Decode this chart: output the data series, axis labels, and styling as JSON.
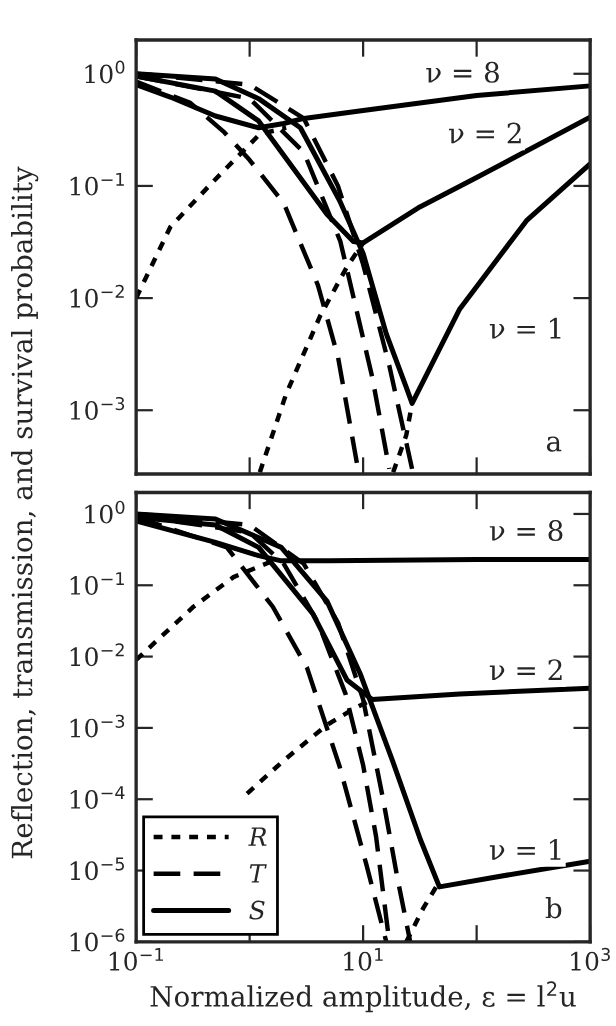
{
  "chart_data": [
    {
      "type": "line",
      "ylabel": "Reflection, transmission, and survival probability",
      "log": "xy",
      "grid": false,
      "legend": false,
      "tick_labels": "y",
      "xlim": [
        0.1,
        1000
      ],
      "xticks": [
        0.1,
        1,
        10,
        100,
        1000
      ],
      "ylim": [
        0.00027,
        2
      ],
      "yticks": [
        {
          "value": 0.001,
          "label": "10$^{−3}$"
        },
        {
          "value": 0.01,
          "label": "10$^{−2}$"
        },
        {
          "value": 0.1,
          "label": "10$^{−1}$"
        },
        {
          "value": 1,
          "label": "10$^{0}$"
        }
      ],
      "series": [
        {
          "color": "#000000",
          "line_style": "solid",
          "x": [
            0.1,
            0.2,
            0.5,
            1.2,
            2,
            3,
            10,
            100,
            1000
          ],
          "values": [
            0.8,
            0.62,
            0.42,
            0.33,
            0.36,
            0.4,
            0.47,
            0.64,
            0.78
          ]
        },
        {
          "color": "#000000",
          "line_style": "solid",
          "x": [
            0.1,
            0.5,
            1.2,
            4.8,
            8.2,
            10,
            31.6,
            102,
            1000
          ],
          "values": [
            0.95,
            0.7,
            0.38,
            0.056,
            0.032,
            0.031,
            0.065,
            0.12,
            0.41
          ]
        },
        {
          "color": "#000000",
          "line_style": "solid",
          "x": [
            0.1,
            0.5,
            1.2,
            2.8,
            6.2,
            10,
            16,
            24,
            27,
            71,
            275,
            1000
          ],
          "values": [
            1.0,
            0.9,
            0.6,
            0.33,
            0.074,
            0.025,
            0.0048,
            0.0016,
            0.00115,
            0.008,
            0.049,
            0.157
          ]
        },
        {
          "color": "#000000",
          "line_style": "dashed",
          "x": [
            0.1,
            0.3,
            0.6,
            1,
            2,
            4,
            6,
            9
          ],
          "values": [
            0.85,
            0.55,
            0.3,
            0.17,
            0.07,
            0.013,
            0.003,
            0.0003
          ]
        },
        {
          "color": "#000000",
          "line_style": "dashed",
          "x": [
            0.1,
            1,
            3,
            6.3,
            12,
            17
          ],
          "values": [
            0.95,
            0.6,
            0.2,
            0.032,
            0.002,
            0.0003
          ]
        },
        {
          "color": "#000000",
          "line_style": "dashed",
          "x": [
            0.1,
            1,
            3,
            6,
            10,
            17,
            27
          ],
          "values": [
            1.0,
            0.8,
            0.4,
            0.1,
            0.02,
            0.0025,
            0.0003
          ]
        },
        {
          "color": "#000000",
          "line_style": "dotted",
          "x": [
            0.1,
            0.2,
            0.48,
            1.23,
            2.1
          ],
          "values": [
            0.01,
            0.043,
            0.11,
            0.29,
            0.33
          ]
        },
        {
          "color": "#000000",
          "line_style": "dotted",
          "x": [
            1.23,
            2.1,
            4.2,
            7.2,
            10
          ],
          "values": [
            0.00028,
            0.0014,
            0.007,
            0.019,
            0.031
          ]
        },
        {
          "color": "#000000",
          "line_style": "dotted",
          "x": [
            18.4,
            24,
            27
          ],
          "values": [
            0.00028,
            0.0006,
            0.00115
          ]
        }
      ],
      "annotations": [
        "ν = 8",
        "ν = 2",
        "ν = 1",
        "a"
      ]
    },
    {
      "type": "line",
      "xlabel": "Normalized amplitude, ε = l$^{2}$u",
      "log": "xy",
      "grid": false,
      "legend": "lower left",
      "xlim": [
        0.1,
        1000
      ],
      "xticks": [
        {
          "value": 0.1,
          "label": "10$^{−1}$"
        },
        {
          "value": 1,
          "label": null
        },
        {
          "value": 10,
          "label": "10$^{1}$"
        },
        {
          "value": 100,
          "label": null
        },
        {
          "value": 1000,
          "label": "10$^{3}$"
        }
      ],
      "ylim": [
        1e-06,
        2
      ],
      "yticks": [
        {
          "value": 1e-06,
          "label": "10$^{−6}$"
        },
        {
          "value": 1e-05,
          "label": "10$^{−5}$"
        },
        {
          "value": 0.0001,
          "label": "10$^{−4}$"
        },
        {
          "value": 0.001,
          "label": "10$^{−3}$"
        },
        {
          "value": 0.01,
          "label": "10$^{−2}$"
        },
        {
          "value": 0.1,
          "label": "10$^{−1}$"
        },
        {
          "value": 1,
          "label": "10$^{0}$"
        }
      ],
      "series": [
        {
          "name": "R",
          "color": "#000000",
          "line_style": "dotted",
          "x": [
            0.1,
            0.32,
            0.72,
            1.6
          ],
          "values": [
            0.009,
            0.05,
            0.13,
            0.22
          ]
        },
        {
          "color": "#000000",
          "line_style": "dotted",
          "x": [
            0.95,
            2,
            4.8,
            8,
            12
          ],
          "values": [
            0.00012,
            0.00035,
            0.0011,
            0.0018,
            0.0025
          ]
        },
        {
          "color": "#000000",
          "line_style": "dotted",
          "x": [
            24,
            34,
            44
          ],
          "values": [
            1e-06,
            3e-06,
            5.9e-06
          ]
        },
        {
          "name": "T",
          "color": "#000000",
          "line_style": "dashed",
          "x": [
            0.1,
            0.63,
            1.6,
            3.2,
            6.2,
            10.7,
            16
          ],
          "values": [
            0.9,
            0.34,
            0.05,
            0.007,
            0.00029,
            1.2e-05,
            1e-06
          ]
        },
        {
          "color": "#000000",
          "line_style": "dashed",
          "x": [
            0.1,
            1,
            2,
            4,
            7,
            10,
            13,
            17
          ],
          "values": [
            0.95,
            0.55,
            0.2,
            0.03,
            0.003,
            0.0003,
            3e-05,
            1e-06
          ]
        },
        {
          "color": "#000000",
          "line_style": "dashed",
          "x": [
            0.1,
            1,
            3,
            6,
            10,
            15,
            20,
            26
          ],
          "values": [
            1.0,
            0.7,
            0.2,
            0.03,
            0.0025,
            0.0001,
            8e-06,
            1e-06
          ]
        },
        {
          "color": "#000000",
          "line_style": "solid",
          "x": [
            0.1,
            0.5,
            1.2,
            1.9,
            5,
            100,
            1000
          ],
          "values": [
            0.8,
            0.4,
            0.26,
            0.22,
            0.22,
            0.23,
            0.23
          ]
        },
        {
          "color": "#000000",
          "line_style": "solid",
          "x": [
            0.1,
            0.5,
            1.2,
            3.6,
            7.2,
            12,
            71,
            1000
          ],
          "values": [
            0.9,
            0.7,
            0.34,
            0.04,
            0.0047,
            0.0025,
            0.003,
            0.0036
          ]
        },
        {
          "name": "S",
          "color": "#000000",
          "line_style": "solid",
          "x": [
            0.1,
            0.5,
            1.9,
            4.8,
            9.4,
            18,
            32,
            47,
            140,
            1000
          ],
          "values": [
            1.0,
            0.85,
            0.34,
            0.06,
            0.0058,
            0.00036,
            2.7e-05,
            5.9e-06,
            8e-06,
            1.35e-05
          ]
        }
      ],
      "annotations": [
        "ν = 8",
        "ν = 2",
        "ν = 1",
        "b"
      ]
    }
  ]
}
